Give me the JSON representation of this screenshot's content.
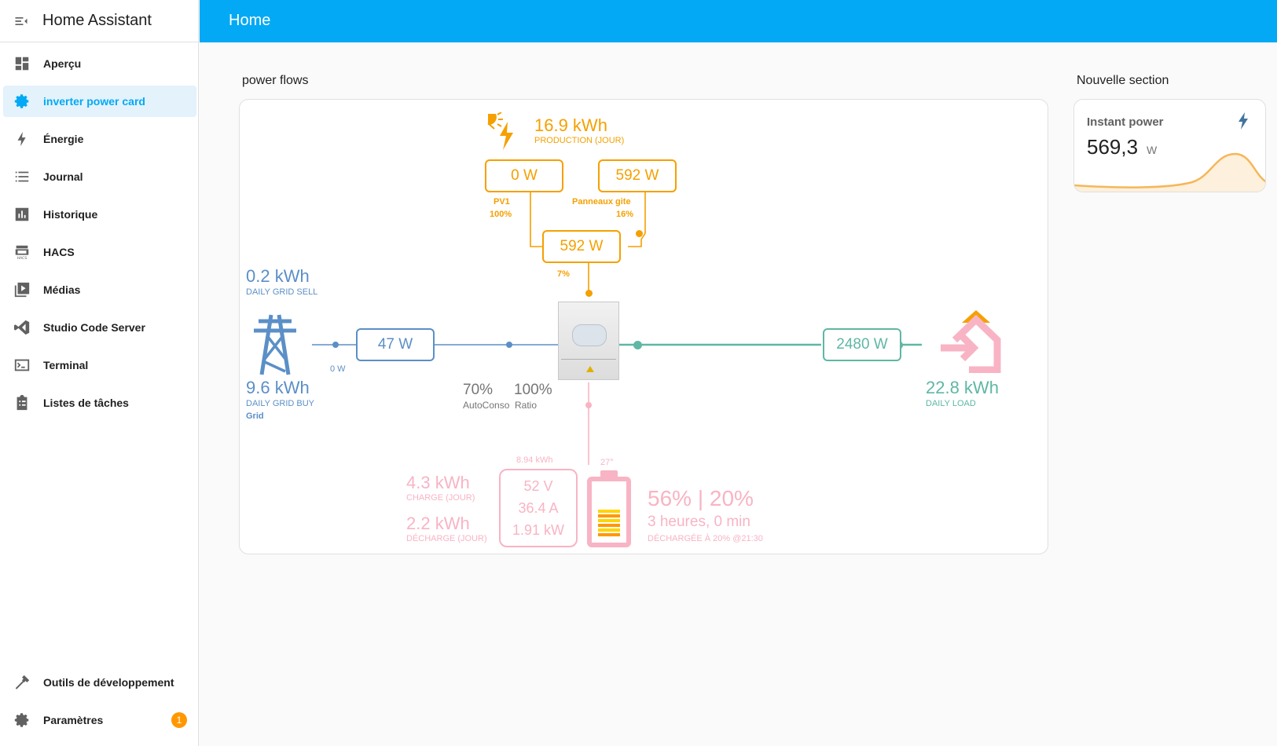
{
  "app": {
    "title": "Home Assistant"
  },
  "sidebar": {
    "items": [
      {
        "label": "Aperçu",
        "icon": "dashboard-icon"
      },
      {
        "label": "inverter power card",
        "icon": "gear-icon"
      },
      {
        "label": "Énergie",
        "icon": "lightning-icon"
      },
      {
        "label": "Journal",
        "icon": "list-icon"
      },
      {
        "label": "Historique",
        "icon": "chart-icon"
      },
      {
        "label": "HACS",
        "icon": "hacs-icon"
      },
      {
        "label": "Médias",
        "icon": "media-icon"
      },
      {
        "label": "Studio Code Server",
        "icon": "vscode-icon"
      },
      {
        "label": "Terminal",
        "icon": "terminal-icon"
      },
      {
        "label": "Listes de tâches",
        "icon": "clipboard-icon"
      }
    ],
    "bottom": [
      {
        "label": "Outils de développement",
        "icon": "hammer-icon"
      },
      {
        "label": "Paramètres",
        "icon": "settings-icon",
        "badge": "1"
      }
    ],
    "active_index": 1
  },
  "header": {
    "title": "Home"
  },
  "sections": {
    "power_flows": "power flows",
    "nouvelle": "Nouvelle section"
  },
  "power_card": {
    "solar": {
      "production": "16.9 kWh",
      "production_label": "PRODUCTION (JOUR)",
      "pv1_power": "0 W",
      "pv1_name": "PV1",
      "pv1_pct": "100%",
      "pv2_power": "592 W",
      "pv2_name": "Panneaux gite",
      "pv2_pct": "16%",
      "total_power": "592 W",
      "total_pct": "7%"
    },
    "grid": {
      "sell": "0.2 kWh",
      "sell_label": "DAILY GRID SELL",
      "buy": "9.6 kWh",
      "buy_label": "DAILY GRID BUY",
      "name": "Grid",
      "power": "47 W",
      "export_power": "0 W"
    },
    "ratios": {
      "autoconso": "70%",
      "autoconso_label": "AutoConso",
      "ratio": "100%",
      "ratio_label": "Ratio"
    },
    "load": {
      "power": "2480 W",
      "daily": "22.8 kWh",
      "daily_label": "DAILY LOAD"
    },
    "battery": {
      "charge": "4.3 kWh",
      "charge_label": "CHARGE (JOUR)",
      "discharge": "2.2 kWh",
      "discharge_label": "DÉCHARGE (JOUR)",
      "capacity": "8.94 kWh",
      "voltage": "52 V",
      "current": "36.4 A",
      "power": "1.91 kW",
      "temp": "27°",
      "soc": "56% | 20%",
      "time": "3 heures, 0 min",
      "status": "DÉCHARGÉE À 20% @21:30",
      "level_fraction": 0.56
    },
    "colors": {
      "solar": "#f5a000",
      "grid": "#5b8fc7",
      "load": "#5fb7a4",
      "battery": "#f8b4c4"
    }
  },
  "instant_power": {
    "title": "Instant power",
    "value": "569,3",
    "unit": "W",
    "icon": "lightning-icon",
    "color": "#f5a000"
  }
}
